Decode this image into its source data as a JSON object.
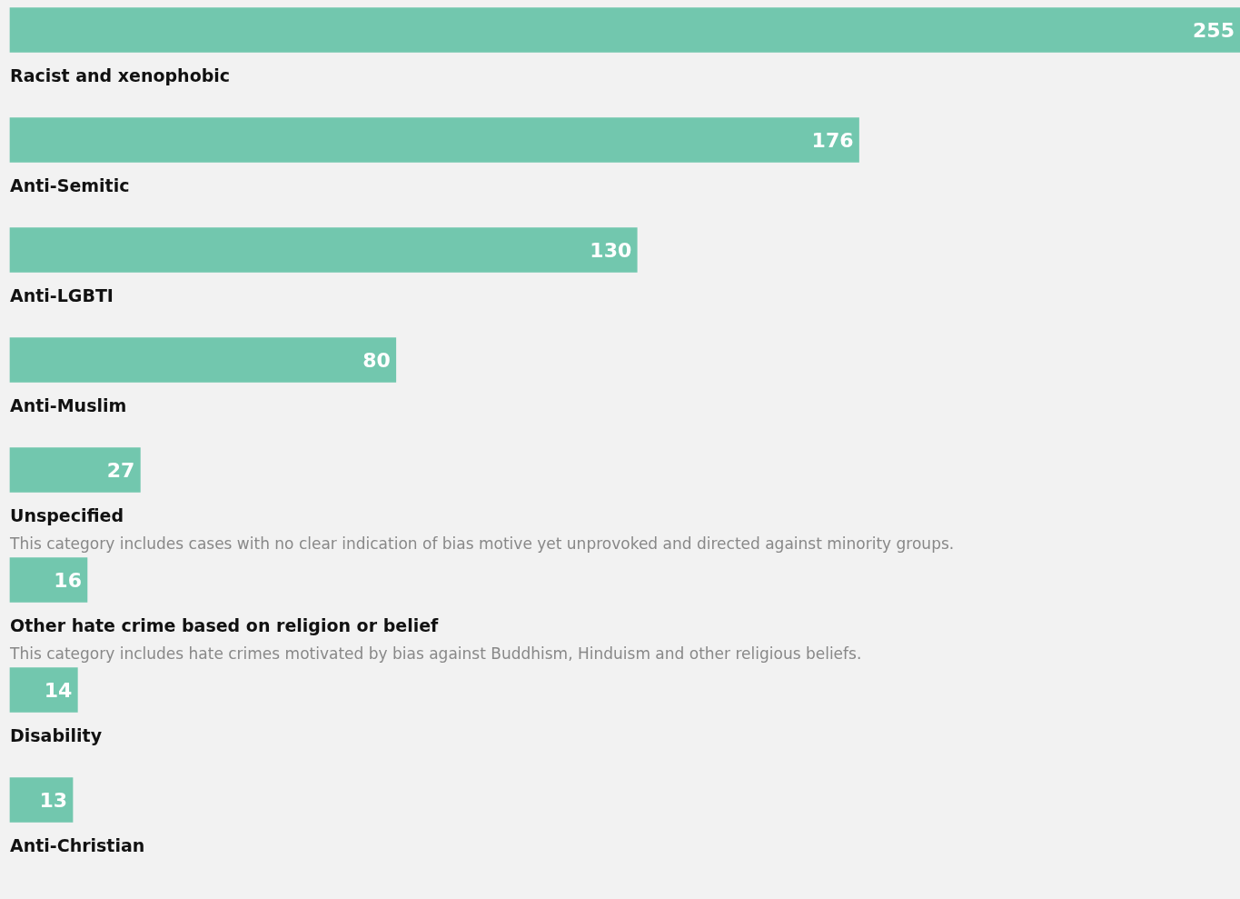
{
  "chart_data": {
    "type": "bar",
    "orientation": "horizontal",
    "categories": [
      "Racist and xenophobic",
      "Anti-Semitic",
      "Anti-LGBTI",
      "Anti-Muslim",
      "Unspecified",
      "Other hate crime based on religion or belief",
      "Disability",
      "Anti-Christian"
    ],
    "values": [
      255,
      176,
      130,
      80,
      27,
      16,
      14,
      13
    ],
    "color": "#72c7ae",
    "data_labels": true,
    "tick_labels": false,
    "annotations": [
      "This category includes cases with no clear indication of bias motive yet unprovoked and directed against minority groups.",
      "This category includes hate crimes motivated by bias against Buddhism, Hinduism and other religious beliefs."
    ]
  }
}
